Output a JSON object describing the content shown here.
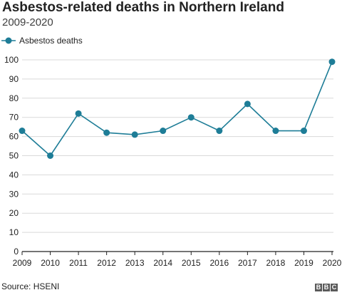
{
  "chart_data": {
    "type": "line",
    "title": "Asbestos-related deaths in Northern Ireland",
    "subtitle": "2009-2020",
    "x": [
      "2009",
      "2010",
      "2011",
      "2012",
      "2013",
      "2014",
      "2015",
      "2016",
      "2017",
      "2018",
      "2019",
      "2020"
    ],
    "series": [
      {
        "name": "Asbestos deaths",
        "values": [
          63,
          50,
          72,
          62,
          61,
          63,
          70,
          63,
          77,
          63,
          63,
          99
        ]
      }
    ],
    "ylim": [
      0,
      100
    ],
    "yticks": [
      "0",
      "10",
      "20",
      "30",
      "40",
      "50",
      "60",
      "70",
      "80",
      "90",
      "100"
    ],
    "grid": true,
    "legend_position": "top-left",
    "source": "Source: HSENI",
    "colors": {
      "line": "#1e7d97",
      "marker": "#1e7d97",
      "grid": "#d9d9d9",
      "axis": "#222222"
    }
  },
  "logo": {
    "letters": [
      "B",
      "B",
      "C"
    ]
  }
}
